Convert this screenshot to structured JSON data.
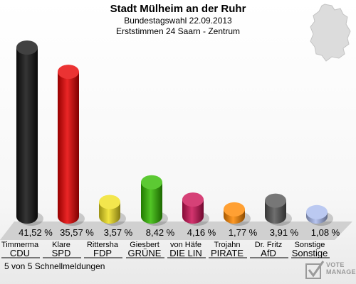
{
  "header": {
    "title": "Stadt Mülheim an der Ruhr",
    "subtitle1": "Bundestagswahl 22.09.2013",
    "subtitle2": "Erststimmen 24 Saarn - Zentrum"
  },
  "footer": {
    "status": "5 von 5 Schnellmeldungen",
    "logo_line1": "VOTE",
    "logo_line2": "MANAGER"
  },
  "chart_data": {
    "type": "bar",
    "title": "Stadt Mülheim an der Ruhr",
    "categories": [
      "CDU",
      "SPD",
      "FDP",
      "GRÜNE",
      "DIE LIN",
      "PIRATE",
      "AfD",
      "Sonstige"
    ],
    "candidates": [
      "Timmerma",
      "Klare",
      "Rittersha",
      "Giesbert",
      "von Häfe",
      "Trojahn",
      "Dr. Fritz",
      "Sonstige"
    ],
    "values": [
      41.52,
      35.57,
      3.57,
      8.42,
      4.16,
      1.77,
      3.91,
      1.08
    ],
    "value_labels": [
      "41,52 %",
      "35,57 %",
      "3,57 %",
      "8,42 %",
      "4,16 %",
      "1,77 %",
      "3,91 %",
      "1,08 %"
    ],
    "colors": [
      "#111111",
      "#e60000",
      "#f0e020",
      "#33bb00",
      "#cc1155",
      "#ff8800",
      "#555555",
      "#aabbee"
    ],
    "ylim": [
      0,
      41.52
    ]
  }
}
